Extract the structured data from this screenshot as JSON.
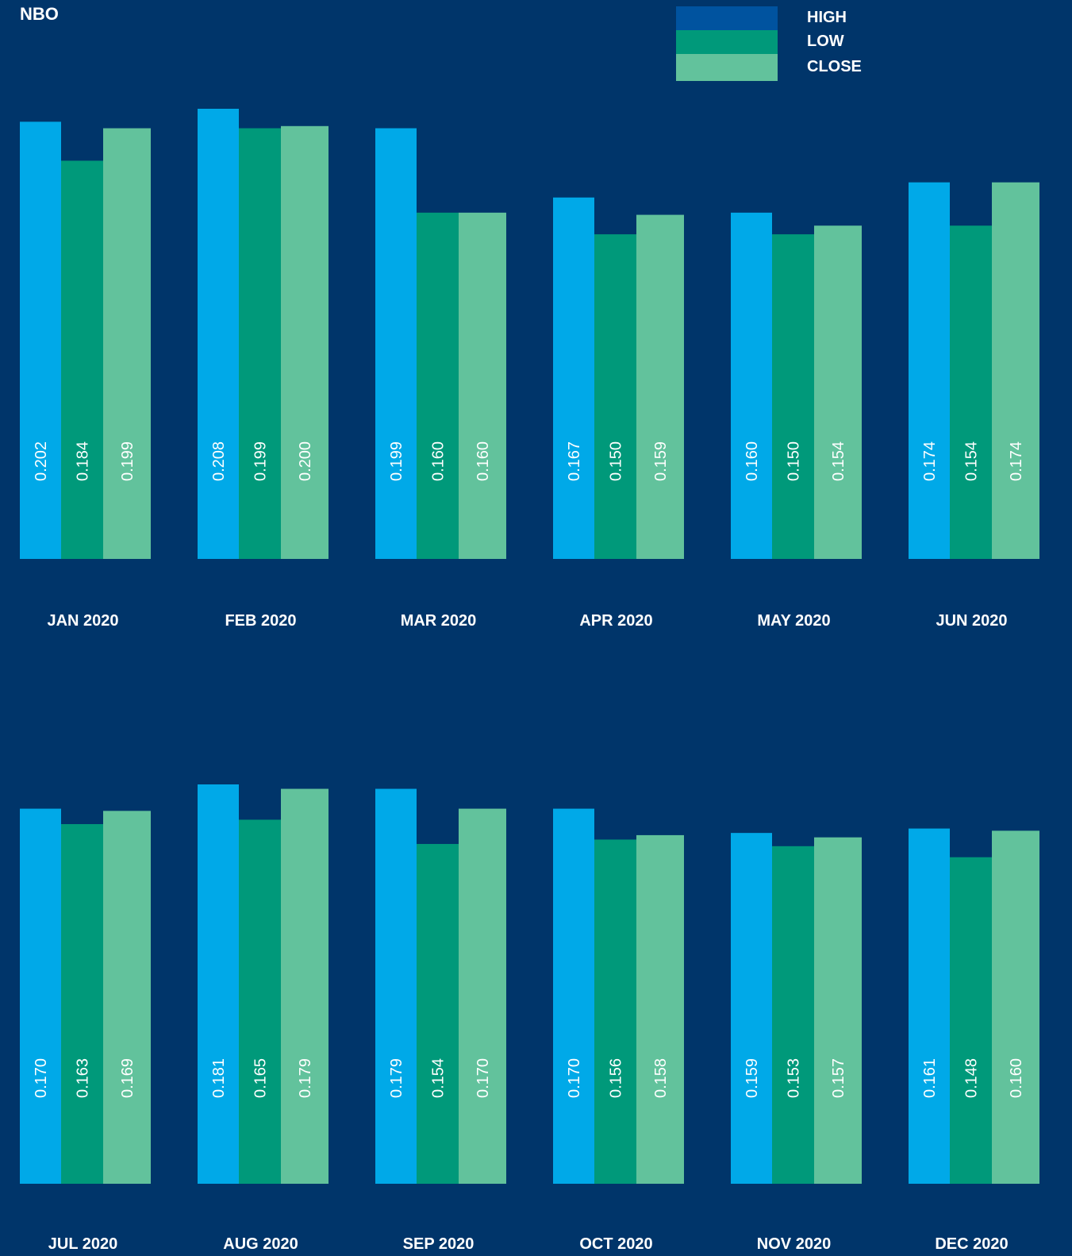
{
  "chart_data": {
    "type": "bar",
    "title": "NBO",
    "series": [
      {
        "name": "HIGH",
        "legend_color": "#00539f",
        "bar_color": "#00a9e8",
        "values": [
          0.202,
          0.208,
          0.199,
          0.167,
          0.16,
          0.174,
          0.17,
          0.181,
          0.179,
          0.17,
          0.159,
          0.161
        ]
      },
      {
        "name": "LOW",
        "legend_color": "#00997a",
        "bar_color": "#00997a",
        "values": [
          0.184,
          0.199,
          0.16,
          0.15,
          0.15,
          0.154,
          0.163,
          0.165,
          0.154,
          0.156,
          0.153,
          0.148
        ]
      },
      {
        "name": "CLOSE",
        "legend_color": "#62c29c",
        "bar_color": "#62c29c",
        "values": [
          0.199,
          0.2,
          0.16,
          0.159,
          0.154,
          0.174,
          0.169,
          0.179,
          0.17,
          0.158,
          0.157,
          0.16
        ]
      }
    ],
    "categories": [
      "JAN 2020",
      "FEB 2020",
      "MAR 2020",
      "APR 2020",
      "MAY 2020",
      "JUN 2020",
      "JUL 2020",
      "AUG 2020",
      "SEP 2020",
      "OCT 2020",
      "NOV 2020",
      "DEC 2020"
    ],
    "value_labels": {
      "HIGH": [
        "0.202",
        "0.208",
        "0.199",
        "0.167",
        "0.160",
        "0.174",
        "0.170",
        "0.181",
        "0.179",
        "0.170",
        "0.159",
        "0.161"
      ],
      "LOW": [
        "0.184",
        "0.199",
        "0.160",
        "0.150",
        "0.150",
        "0.154",
        "0.163",
        "0.165",
        "0.154",
        "0.156",
        "0.153",
        "0.148"
      ],
      "CLOSE": [
        "0.199",
        "0.200",
        "0.160",
        "0.159",
        "0.154",
        "0.174",
        "0.169",
        "0.179",
        "0.170",
        "0.158",
        "0.157",
        "0.160"
      ]
    },
    "legend_position": "top-right",
    "grid": false,
    "xlabel": "",
    "ylabel": "",
    "panels": 2,
    "months_per_panel": 6,
    "colors": {
      "background": "#00356a",
      "text": "#ffffff"
    }
  }
}
